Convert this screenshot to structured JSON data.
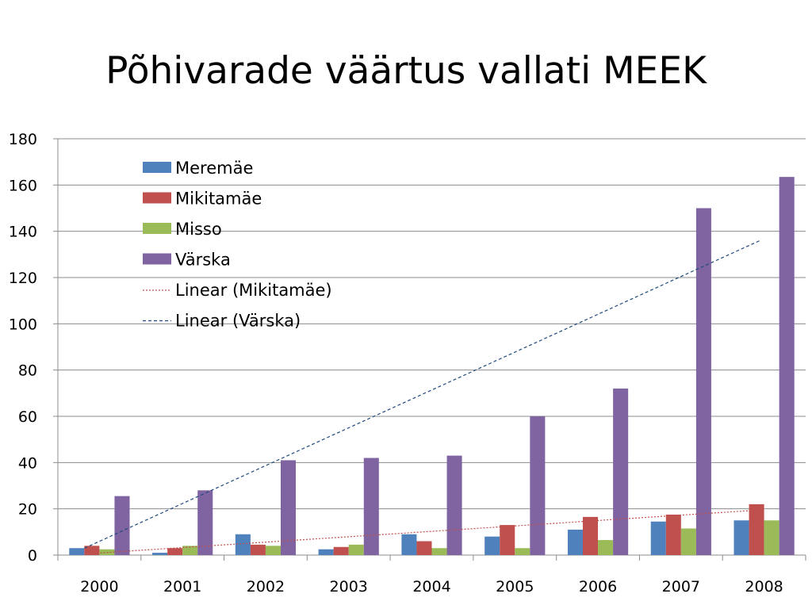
{
  "title": "Põhivarade väärtus vallati MEEK",
  "chart_data": {
    "type": "bar",
    "title": "Põhivarade väärtus vallati MEEK",
    "categories": [
      "2000",
      "2001",
      "2002",
      "2003",
      "2004",
      "2005",
      "2006",
      "2007",
      "2008"
    ],
    "series": [
      {
        "name": "Meremäe",
        "color": "#4F81BD",
        "values": [
          3,
          1,
          9,
          2.5,
          9,
          8,
          11,
          14.5,
          15
        ]
      },
      {
        "name": "Mikitamäe",
        "color": "#C0504D",
        "values": [
          4,
          3,
          4.5,
          3.5,
          6,
          13,
          16.5,
          17.5,
          22
        ]
      },
      {
        "name": "Misso",
        "color": "#9BBB59",
        "values": [
          2.5,
          4,
          4,
          4.5,
          3,
          3,
          6.5,
          11.5,
          15
        ]
      },
      {
        "name": "Värska",
        "color": "#8064A2",
        "values": [
          25.5,
          28,
          41,
          42,
          43,
          60,
          72,
          150,
          163.5
        ]
      }
    ],
    "trendlines": [
      {
        "name": "Linear (Mikitamäe)",
        "series": "Mikitamäe",
        "color": "#C0504D",
        "style": "dotted",
        "start": 0.5,
        "end": 19.5
      },
      {
        "name": "Linear (Värska)",
        "series": "Värska",
        "color": "#1F497D",
        "style": "dashed",
        "start": 3,
        "end": 136
      }
    ],
    "ylim": [
      0,
      180
    ],
    "yticks": [
      0,
      20,
      40,
      60,
      80,
      100,
      120,
      140,
      160,
      180
    ],
    "xlabel": "",
    "ylabel": "",
    "grid": true,
    "legend_position": "top-left-inside"
  }
}
